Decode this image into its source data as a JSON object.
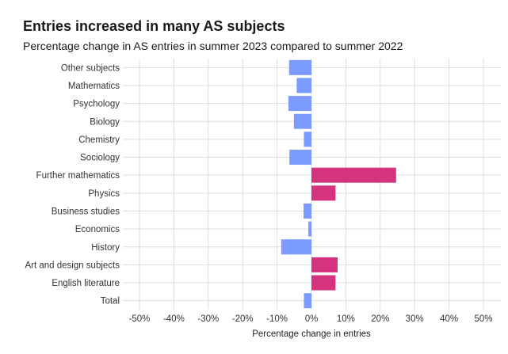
{
  "chart_data": {
    "type": "bar",
    "orientation": "horizontal",
    "title": "Entries increased in many AS subjects",
    "subtitle": "Percentage change in AS entries in summer 2023 compared to summer 2022",
    "xlabel": "Percentage change in entries",
    "ylabel": "",
    "xlim": [
      -50,
      50
    ],
    "x_ticks": [
      -50,
      -40,
      -30,
      -20,
      -10,
      0,
      10,
      20,
      30,
      40,
      50
    ],
    "x_tick_labels": [
      "-50%",
      "-40%",
      "-30%",
      "-20%",
      "-10%",
      "0%",
      "10%",
      "20%",
      "30%",
      "40%",
      "50%"
    ],
    "grid": true,
    "categories": [
      "Other subjects",
      "Mathematics",
      "Psychology",
      "Biology",
      "Chemistry",
      "Sociology",
      "Further mathematics",
      "Physics",
      "Business studies",
      "Economics",
      "History",
      "Art and design subjects",
      "English literature",
      "Total"
    ],
    "values": [
      -6.5,
      -4.3,
      -6.7,
      -5.1,
      -2.2,
      -6.4,
      24.6,
      7.0,
      -2.3,
      -0.9,
      -8.8,
      7.6,
      7.0,
      -2.2
    ],
    "colors": {
      "negative": "#7b9bff",
      "positive": "#d6337f",
      "grid": "#dddddd"
    }
  }
}
